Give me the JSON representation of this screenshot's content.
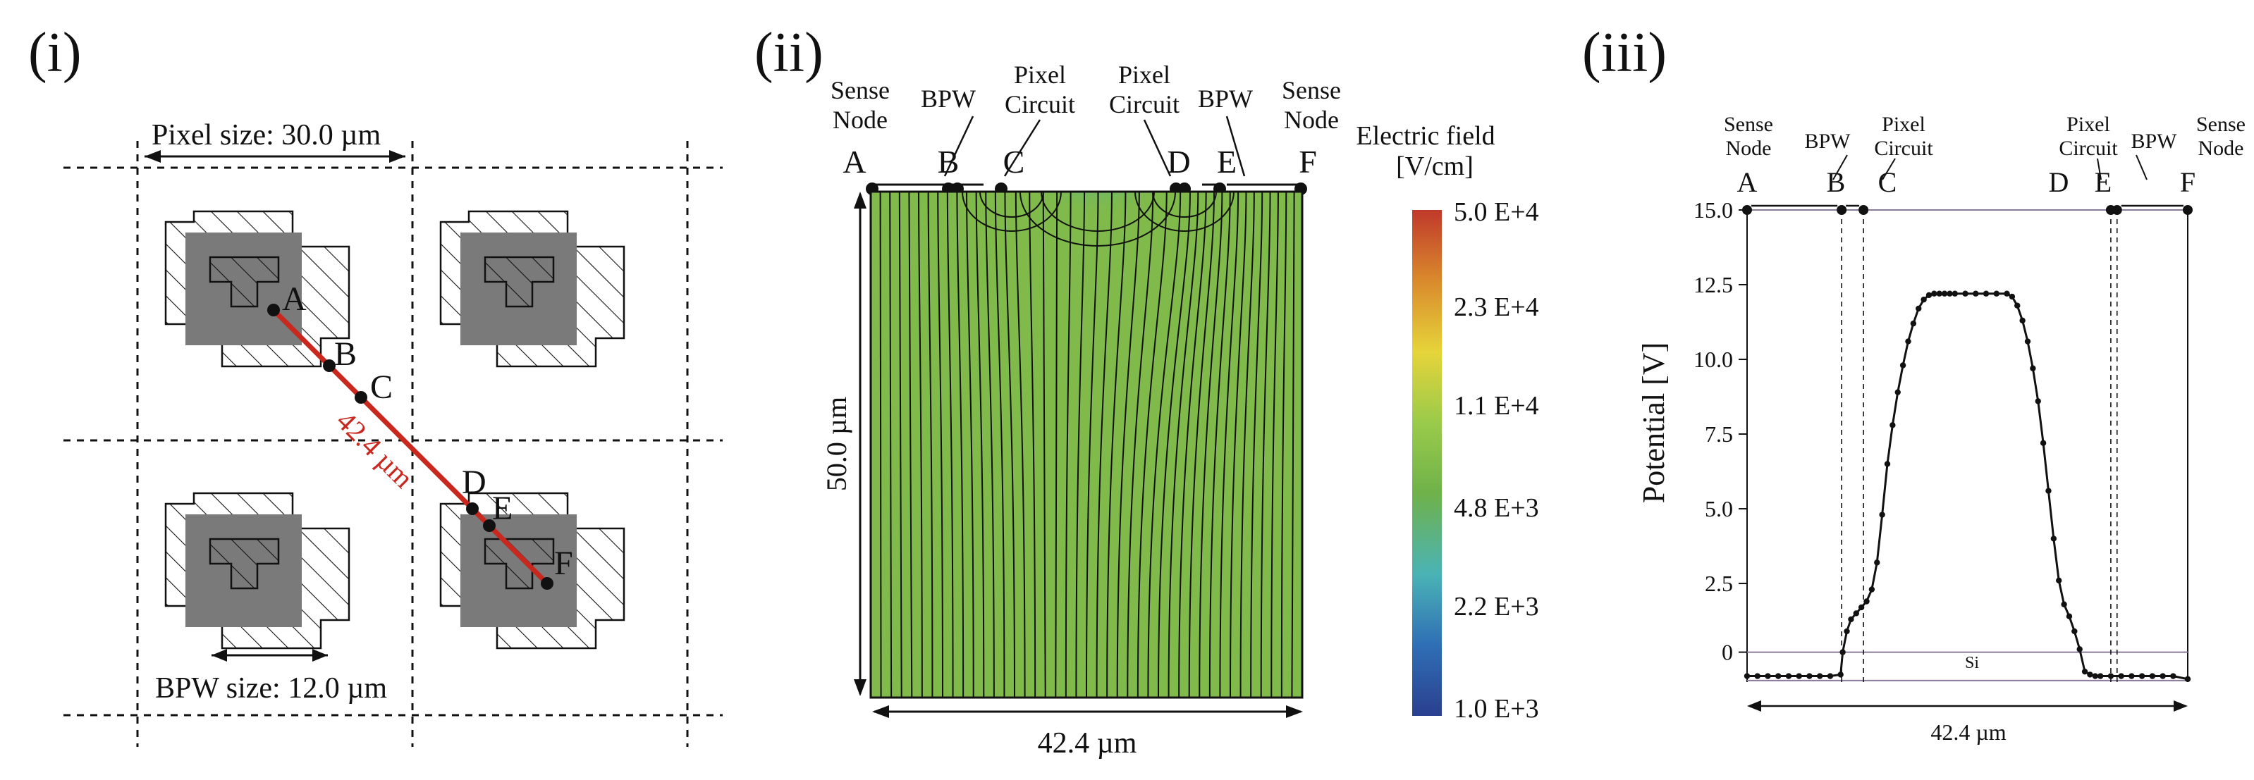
{
  "panel_i": {
    "label": "(i)",
    "pixel_size": "Pixel size: 30.0 µm",
    "bpw_size": "BPW size: 12.0 µm",
    "diag_length": "42.4 µm",
    "points": [
      "A",
      "B",
      "C",
      "D",
      "E",
      "F"
    ],
    "colors": {
      "line": "#c8281e",
      "implant": "#7a7a7a",
      "stroke": "#111111",
      "diag_text": "#c8281e"
    }
  },
  "panel_ii": {
    "label": "(ii)",
    "top_labels": {
      "sense_node_left": [
        "Sense",
        "Node"
      ],
      "bpw_left": "BPW",
      "pixel_circuit_left": [
        "Pixel",
        "Circuit"
      ],
      "pixel_circuit_right": [
        "Pixel",
        "Circuit"
      ],
      "bpw_right": "BPW",
      "sense_node_right": [
        "Sense",
        "Node"
      ]
    },
    "points": [
      "A",
      "B",
      "C",
      "D",
      "E",
      "F"
    ],
    "depth_label": "50.0 µm",
    "width_label": "42.4 µm",
    "colorbar": {
      "title": [
        "Electric field",
        "[V/cm]"
      ],
      "ticks": [
        "5.0 E+4",
        "2.3 E+4",
        "1.1 E+4",
        "4.8 E+3",
        "2.2 E+3",
        "1.0 E+3"
      ],
      "colors": [
        "#c0392b",
        "#d98a2c",
        "#e6d43a",
        "#9acb4a",
        "#6fb24a",
        "#4ab3b5",
        "#2f6fb5",
        "#2a3f8f"
      ]
    },
    "field_color": "#7fba4a"
  },
  "panel_iii": {
    "label": "(iii)",
    "top_labels": {
      "sense_node_left": [
        "Sense",
        "Node"
      ],
      "bpw_left": "BPW",
      "pixel_circuit_left": [
        "Pixel",
        "Circuit"
      ],
      "pixel_circuit_right": [
        "Pixel",
        "Circuit"
      ],
      "bpw_right": "BPW",
      "sense_node_right": [
        "Sense",
        "Node"
      ]
    },
    "points": [
      "A",
      "B",
      "C",
      "D",
      "E",
      "F"
    ],
    "width_label": "42.4 µm",
    "si_label": "Si",
    "chart_data": {
      "type": "line",
      "title": "",
      "xlabel": "42.4 µm",
      "ylabel": "Potential [V]",
      "ylim": [
        -0.8,
        15.0
      ],
      "yticks": [
        0,
        2.5,
        5.0,
        7.5,
        10.0,
        12.5,
        15.0
      ],
      "ytick_labels": [
        "0",
        "2.5",
        "5.0",
        "7.5",
        "10.0",
        "12.5",
        "15.0"
      ],
      "xlim": [
        0,
        42.4
      ],
      "series": [
        {
          "name": "Potential",
          "x": [
            0,
            1,
            2,
            3,
            4,
            5,
            6,
            7,
            8,
            9,
            9.2,
            9.6,
            10,
            10.5,
            11,
            11.5,
            12,
            12.5,
            13,
            13.5,
            14,
            14.5,
            15,
            15.5,
            16,
            16.5,
            17,
            17.5,
            18,
            18.5,
            19,
            19.5,
            20,
            21,
            22,
            23,
            24,
            25,
            25.5,
            26,
            26.5,
            27,
            27.5,
            28,
            28.5,
            29,
            29.5,
            30,
            30.5,
            31,
            31.5,
            32,
            32.5,
            33,
            33.5,
            34,
            35,
            36,
            37,
            38,
            39,
            40,
            41,
            42.4
          ],
          "values": [
            -0.6,
            -0.6,
            -0.6,
            -0.6,
            -0.6,
            -0.6,
            -0.6,
            -0.6,
            -0.6,
            -0.55,
            0.2,
            0.9,
            1.3,
            1.5,
            1.7,
            1.9,
            2.3,
            3.2,
            4.8,
            6.5,
            7.8,
            8.9,
            9.8,
            10.6,
            11.2,
            11.7,
            12.0,
            12.15,
            12.2,
            12.2,
            12.2,
            12.2,
            12.2,
            12.2,
            12.2,
            12.2,
            12.2,
            12.2,
            12.1,
            11.8,
            11.3,
            10.6,
            9.7,
            8.6,
            7.2,
            5.6,
            4.0,
            2.6,
            1.8,
            1.4,
            0.9,
            0.3,
            -0.45,
            -0.55,
            -0.6,
            -0.6,
            -0.6,
            -0.6,
            -0.6,
            -0.6,
            -0.6,
            -0.6,
            -0.6,
            -0.7
          ]
        }
      ]
    }
  }
}
